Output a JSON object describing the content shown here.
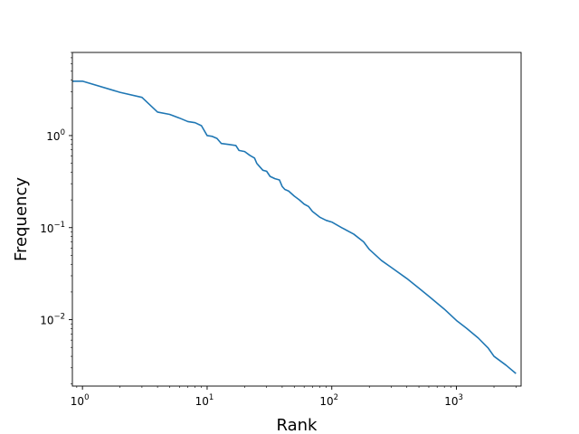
{
  "chart_data": {
    "type": "line",
    "title": "",
    "xlabel": "Rank",
    "ylabel": "Frequency",
    "xscale": "log",
    "yscale": "log",
    "xlim": [
      0.83,
      3300
    ],
    "ylim": [
      0.0019,
      8.0
    ],
    "grid": false,
    "legend": "none",
    "x_ticks": [
      {
        "value": 1,
        "base": "10",
        "exp": "0"
      },
      {
        "value": 10,
        "base": "10",
        "exp": "1"
      },
      {
        "value": 100,
        "base": "10",
        "exp": "2"
      },
      {
        "value": 1000,
        "base": "10",
        "exp": "3"
      }
    ],
    "y_ticks": [
      {
        "value": 0.01,
        "base": "10",
        "exp": "−2"
      },
      {
        "value": 0.1,
        "base": "10",
        "exp": "−1"
      },
      {
        "value": 1,
        "base": "10",
        "exp": "0"
      }
    ],
    "series": [
      {
        "color": "#1f77b4",
        "x": [
          0.83,
          1,
          2,
          3,
          4,
          5,
          6,
          7,
          8,
          9,
          10,
          11,
          12,
          13,
          15,
          17,
          18,
          20,
          22,
          24,
          25,
          26,
          28,
          30,
          32,
          35,
          38,
          40,
          42,
          45,
          50,
          55,
          60,
          65,
          70,
          80,
          90,
          100,
          120,
          150,
          180,
          200,
          250,
          300,
          400,
          500,
          600,
          800,
          1000,
          1200,
          1500,
          1800,
          2000,
          2500,
          3000
        ],
        "y": [
          3.9,
          3.9,
          2.95,
          2.6,
          1.8,
          1.7,
          1.55,
          1.42,
          1.38,
          1.28,
          1.0,
          0.98,
          0.93,
          0.82,
          0.8,
          0.78,
          0.69,
          0.67,
          0.61,
          0.57,
          0.5,
          0.47,
          0.42,
          0.41,
          0.36,
          0.34,
          0.33,
          0.28,
          0.26,
          0.25,
          0.22,
          0.2,
          0.18,
          0.17,
          0.15,
          0.13,
          0.12,
          0.115,
          0.1,
          0.085,
          0.07,
          0.058,
          0.044,
          0.037,
          0.028,
          0.022,
          0.018,
          0.013,
          0.0098,
          0.0081,
          0.0063,
          0.0049,
          0.004,
          0.0032,
          0.0026
        ]
      }
    ]
  }
}
